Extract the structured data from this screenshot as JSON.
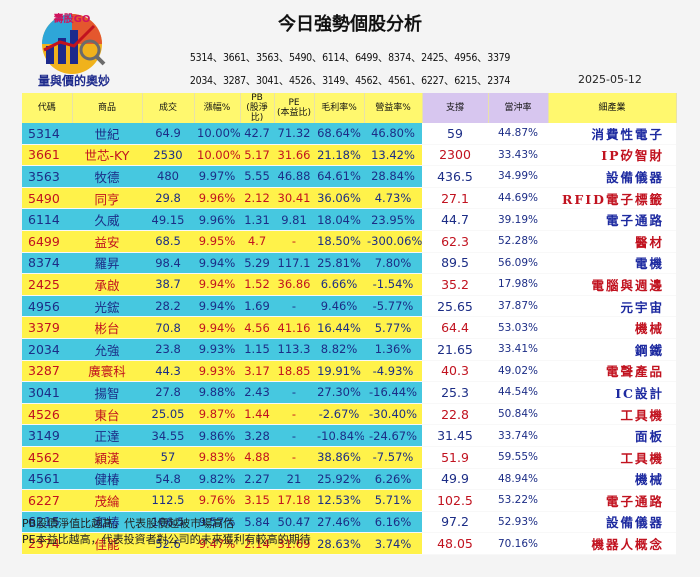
{
  "header": {
    "title": "今日強勢個股分析",
    "logo_brand": "壽股GO",
    "logo_slogan": "量與價的奧妙",
    "codes_line1": "5314、3661、3563、5490、6114、6499、8374、2425、4956、3379",
    "codes_line2": "2034、3287、3041、4526、3149、4562、4561、6227、6215、2374",
    "date": "2025-05-12"
  },
  "colors": {
    "row_odd": "#46c8e0",
    "row_even": "#fff24a",
    "header_yellow": "#fff86e",
    "header_purple": "#d7c6ef",
    "text_blue": "#1c2d86",
    "text_red": "#c1121f"
  },
  "table": {
    "headers": {
      "code": "代碼",
      "name": "商品",
      "volume": "成交",
      "change": "漲幅%",
      "pb_l1": "PB",
      "pb_l2": "(股淨比)",
      "pe_l1": "PE",
      "pe_l2": "(本益比)",
      "gross": "毛利率%",
      "op": "營益率%",
      "support": "支撐",
      "rate": "當沖率",
      "industry": "細產業"
    },
    "rows": [
      {
        "code": "5314",
        "name": "世紀",
        "volume": "64.9",
        "change": "10.00%",
        "pb": "42.7",
        "pe": "71.32",
        "gross": "68.64%",
        "op": "46.80%",
        "support": "59",
        "rate": "44.87%",
        "industry": "消費性電子"
      },
      {
        "code": "3661",
        "name": "世芯-KY",
        "volume": "2530",
        "change": "10.00%",
        "pb": "5.17",
        "pe": "31.66",
        "gross": "21.18%",
        "op": "13.42%",
        "support": "2300",
        "rate": "33.43%",
        "industry": "IP矽智財"
      },
      {
        "code": "3563",
        "name": "牧德",
        "volume": "480",
        "change": "9.97%",
        "pb": "5.55",
        "pe": "46.88",
        "gross": "64.61%",
        "op": "28.84%",
        "support": "436.5",
        "rate": "34.99%",
        "industry": "設備儀器"
      },
      {
        "code": "5490",
        "name": "同亨",
        "volume": "29.8",
        "change": "9.96%",
        "pb": "2.12",
        "pe": "30.41",
        "gross": "36.06%",
        "op": "4.73%",
        "support": "27.1",
        "rate": "44.69%",
        "industry": "RFID電子標籤"
      },
      {
        "code": "6114",
        "name": "久威",
        "volume": "49.15",
        "change": "9.96%",
        "pb": "1.31",
        "pe": "9.81",
        "gross": "18.04%",
        "op": "23.95%",
        "support": "44.7",
        "rate": "39.19%",
        "industry": "電子通路"
      },
      {
        "code": "6499",
        "name": "益安",
        "volume": "68.5",
        "change": "9.95%",
        "pb": "4.7",
        "pe": "-",
        "gross": "18.50%",
        "op": "-300.06%",
        "support": "62.3",
        "rate": "52.28%",
        "industry": "醫材"
      },
      {
        "code": "8374",
        "name": "羅昇",
        "volume": "98.4",
        "change": "9.94%",
        "pb": "5.29",
        "pe": "117.1",
        "gross": "25.81%",
        "op": "7.80%",
        "support": "89.5",
        "rate": "56.09%",
        "industry": "電機"
      },
      {
        "code": "2425",
        "name": "承啟",
        "volume": "38.7",
        "change": "9.94%",
        "pb": "1.52",
        "pe": "36.86",
        "gross": "6.66%",
        "op": "-1.54%",
        "support": "35.2",
        "rate": "17.98%",
        "industry": "電腦與週邊"
      },
      {
        "code": "4956",
        "name": "光鋐",
        "volume": "28.2",
        "change": "9.94%",
        "pb": "1.69",
        "pe": "-",
        "gross": "9.46%",
        "op": "-5.77%",
        "support": "25.65",
        "rate": "37.87%",
        "industry": "元宇宙"
      },
      {
        "code": "3379",
        "name": "彬台",
        "volume": "70.8",
        "change": "9.94%",
        "pb": "4.56",
        "pe": "41.16",
        "gross": "16.44%",
        "op": "5.77%",
        "support": "64.4",
        "rate": "53.03%",
        "industry": "機械"
      },
      {
        "code": "2034",
        "name": "允強",
        "volume": "23.8",
        "change": "9.93%",
        "pb": "1.15",
        "pe": "113.3",
        "gross": "8.82%",
        "op": "1.36%",
        "support": "21.65",
        "rate": "33.41%",
        "industry": "鋼鐵"
      },
      {
        "code": "3287",
        "name": "廣寰科",
        "volume": "44.3",
        "change": "9.93%",
        "pb": "3.17",
        "pe": "18.85",
        "gross": "19.91%",
        "op": "-4.93%",
        "support": "40.3",
        "rate": "49.02%",
        "industry": "電聲產品"
      },
      {
        "code": "3041",
        "name": "揚智",
        "volume": "27.8",
        "change": "9.88%",
        "pb": "2.43",
        "pe": "-",
        "gross": "27.30%",
        "op": "-16.44%",
        "support": "25.3",
        "rate": "44.54%",
        "industry": "IC設計"
      },
      {
        "code": "4526",
        "name": "東台",
        "volume": "25.05",
        "change": "9.87%",
        "pb": "1.44",
        "pe": "-",
        "gross": "-2.67%",
        "op": "-30.40%",
        "support": "22.8",
        "rate": "50.84%",
        "industry": "工具機"
      },
      {
        "code": "3149",
        "name": "正達",
        "volume": "34.55",
        "change": "9.86%",
        "pb": "3.28",
        "pe": "-",
        "gross": "-10.84%",
        "op": "-24.67%",
        "support": "31.45",
        "rate": "33.74%",
        "industry": "面板"
      },
      {
        "code": "4562",
        "name": "穎漢",
        "volume": "57",
        "change": "9.83%",
        "pb": "4.88",
        "pe": "-",
        "gross": "38.86%",
        "op": "-7.57%",
        "support": "51.9",
        "rate": "59.55%",
        "industry": "工具機"
      },
      {
        "code": "4561",
        "name": "健椿",
        "volume": "54.8",
        "change": "9.82%",
        "pb": "2.27",
        "pe": "21",
        "gross": "25.92%",
        "op": "6.26%",
        "support": "49.9",
        "rate": "48.94%",
        "industry": "機械"
      },
      {
        "code": "6227",
        "name": "茂綸",
        "volume": "112.5",
        "change": "9.76%",
        "pb": "3.15",
        "pe": "17.18",
        "gross": "12.53%",
        "op": "5.71%",
        "support": "102.5",
        "rate": "53.22%",
        "industry": "電子通路"
      },
      {
        "code": "6215",
        "name": "和椿",
        "volume": "106.5",
        "change": "9.57%",
        "pb": "5.84",
        "pe": "50.47",
        "gross": "27.46%",
        "op": "6.16%",
        "support": "97.2",
        "rate": "52.93%",
        "industry": "設備儀器"
      },
      {
        "code": "2374",
        "name": "佳能",
        "volume": "52.6",
        "change": "9.47%",
        "pb": "2.14",
        "pe": "31.69",
        "gross": "28.63%",
        "op": "3.74%",
        "support": "48.05",
        "rate": "70.16%",
        "industry": "機器人概念"
      }
    ]
  },
  "notes": {
    "pb": "PB股價淨值比越高，代表股價越被市場高估",
    "pe": "PE本益比越高，代表投資者對公司的未來獲利有較高的期待"
  }
}
